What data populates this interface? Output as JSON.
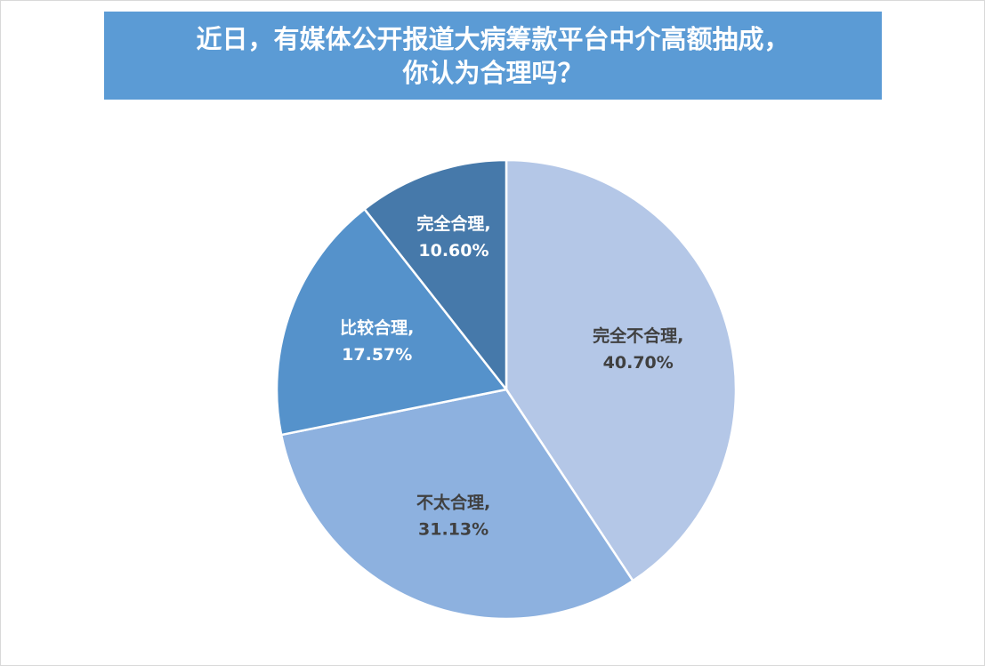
{
  "chart_data": {
    "type": "pie",
    "title": "近日，有媒体公开报道大病筹款平台中介高额抽成，\n你认为合理吗？",
    "categories": [
      "完全不合理,",
      "不太合理,",
      "比较合理,",
      "完全合理,"
    ],
    "values": [
      40.7,
      31.13,
      17.57,
      10.6
    ],
    "value_labels": [
      "40.70%",
      "31.13%",
      "17.57%",
      "10.60%"
    ],
    "colors": [
      "#b4c7e7",
      "#8db1df",
      "#5592cb",
      "#4679aa"
    ],
    "label_colors": [
      "#404040",
      "#404040",
      "#ffffff",
      "#ffffff"
    ]
  }
}
